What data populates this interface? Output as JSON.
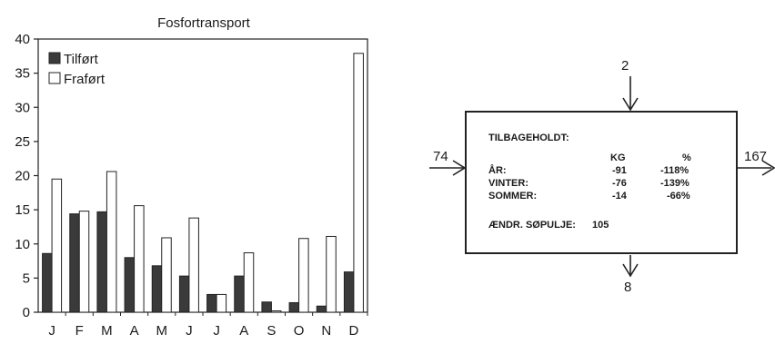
{
  "chart_data": {
    "type": "bar",
    "title": "Fosfortransport",
    "categories": [
      "J",
      "F",
      "M",
      "A",
      "M",
      "J",
      "J",
      "A",
      "S",
      "O",
      "N",
      "D"
    ],
    "series": [
      {
        "name": "Tilført",
        "values": [
          8.6,
          14.4,
          14.7,
          8.0,
          6.8,
          5.3,
          2.6,
          5.3,
          1.5,
          1.4,
          0.9,
          5.9
        ],
        "color": "#3a3a3a"
      },
      {
        "name": "Fraført",
        "values": [
          19.5,
          14.8,
          20.6,
          15.6,
          10.9,
          13.8,
          2.6,
          8.7,
          0.2,
          10.8,
          11.1,
          37.9
        ],
        "color": "#ffffff"
      }
    ],
    "ylim": [
      0,
      40
    ],
    "yticks": [
      0,
      5,
      10,
      15,
      20,
      25,
      30,
      35,
      40
    ],
    "xlabel": "",
    "ylabel": "",
    "legend_position": "top-left",
    "grid": false
  },
  "balance": {
    "inflow_top": "2",
    "inflow_left": "74",
    "outflow_right": "167",
    "outflow_bottom": "8",
    "heading": "TILBAGEHOLDT:",
    "col_kg": "KG",
    "col_pct": "%",
    "rows": [
      {
        "label": "ÅR:",
        "kg": "-91",
        "pct": "-118%"
      },
      {
        "label": "VINTER:",
        "kg": "-76",
        "pct": "-139%"
      },
      {
        "label": "SOMMER:",
        "kg": "-14",
        "pct": "-66%"
      }
    ],
    "pool_label": "ÆNDR. SØPULJE:",
    "pool_value": "105"
  }
}
